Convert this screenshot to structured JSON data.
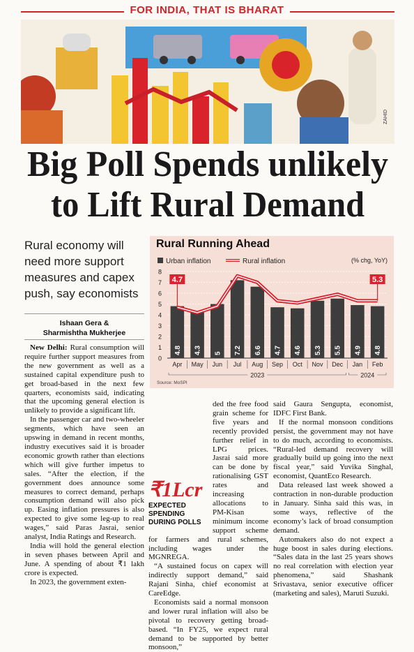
{
  "banner": "FOR INDIA, THAT IS BHARAT",
  "credit": "ZAHID",
  "headline": [
    "Big Poll Spends unlikely",
    "to Lift Rural Demand"
  ],
  "subhead": "Rural economy will need more support measures and capex push, say economists",
  "byline": [
    "Ishaan Gera &",
    "Sharmishtha Mukherjee"
  ],
  "article": {
    "dateline": "New Delhi:",
    "columns": [
      [
        "Rural consumption will require further support measures from the new government as well as a sustained capital expenditure push to get broad-based in the next few quarters, economists said, indicating that the upcoming general election is unlikely to provide a significant lift.",
        "In the passenger car and two-wheeler segments, which have seen an upswing in demand in recent months, industry executives said it is broader economic growth rather than elections which will give further impetus to sales. “After the election, if the government does announce some measures to correct demand, perhaps consumption demand will also pick up. Easing inflation pressures is also expected to give some leg-up to real wages,” said Paras Jasrai, senior analyst, India Ratings and Research.",
        "India will hold the general election in seven phases between April and June. A spending of about ₹1 lakh crore is expected.",
        "In 2023, the government exten-"
      ],
      [
        "ded the free food grain scheme for five years and recently provided further relief in LPG prices. Jasrai said more can be done by rationalising GST rates and increasing allocations to PM-Kisan minimum income support scheme for farmers and rural schemes, including wages under the MGNREGA.",
        "“A sustained focus on capex will indirectly support demand,” said Rajani Sinha, chief economist at CareEdge.",
        "Economists said a normal monsoon and lower rural inflation will also be pivotal to recovery getting broad-based. “In FY25, we expect rural demand to be supported by better monsoon,”"
      ],
      [
        "said Gaura Sengupta, economist, IDFC First Bank.",
        "If the normal monsoon conditions persist, the government may not have to do much, according to economists. “Rural-led demand recovery will gradually build up going into the next fiscal year,” said Yuvika Singhal, economist, QuantEco Research.",
        "Data released last week showed a contraction in non-durable production in January. Sinha said this was, in some ways, reflective of the economy’s lack of broad consumption demand.",
        "Automakers also do not expect a huge boost in sales during elections. “Sales data in the last 25 years shows no real correlation with election year phenomena,” said Shashank Srivastava, senior executive officer (marketing and sales), Maruti Suzuki."
      ]
    ]
  },
  "callout": {
    "amount": "₹1Lcr",
    "caption": "EXPECTED SPENDING DURING POLLS"
  },
  "chart_data": {
    "type": "bar",
    "title": "Rural Running Ahead",
    "unit": "(% chg, YoY)",
    "source": "Source: MoSPI",
    "categories": [
      "Apr",
      "May",
      "Jun",
      "Jul",
      "Aug",
      "Sep",
      "Oct",
      "Nov",
      "Dec",
      "Jan",
      "Feb"
    ],
    "year_labels": [
      "2023",
      "2024"
    ],
    "series": [
      {
        "name": "Urban inflation",
        "type": "bar",
        "color": "#3d3d3d",
        "values": [
          4.8,
          4.3,
          5.0,
          7.2,
          6.6,
          4.7,
          4.6,
          5.3,
          5.5,
          4.9,
          4.8
        ]
      },
      {
        "name": "Rural inflation",
        "type": "line",
        "color": "#d9232e",
        "values": [
          4.7,
          4.2,
          4.8,
          7.6,
          7.0,
          5.3,
          5.1,
          5.5,
          5.9,
          5.3,
          5.3
        ]
      }
    ],
    "ylim": [
      0,
      8
    ],
    "yticks": [
      0,
      1,
      2,
      3,
      4,
      5,
      6,
      7,
      8
    ],
    "grid": true
  }
}
